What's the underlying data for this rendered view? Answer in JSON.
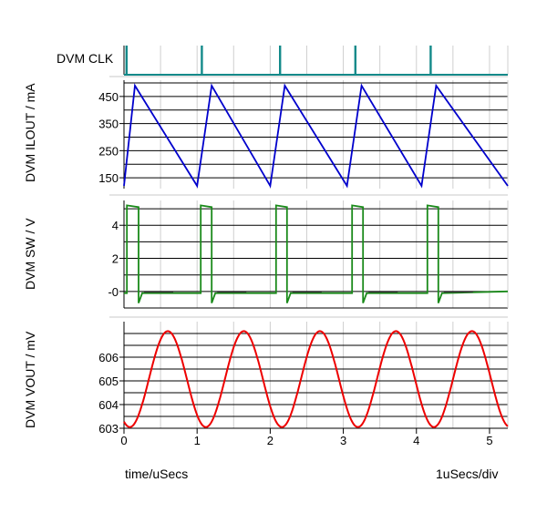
{
  "chart_data": {
    "type": "line",
    "x_axis": {
      "label": "time/uSecs",
      "div_label": "1uSecs/div",
      "range": [
        0,
        5.25
      ],
      "ticks": [
        0,
        1,
        2,
        3,
        4,
        5
      ]
    },
    "panels": [
      {
        "id": "clk",
        "name": "DVM CLK",
        "color": "#138a8a",
        "ylim": [
          0,
          1
        ],
        "ticks": [],
        "pulses": [
          0.02,
          1.05,
          2.12,
          3.15,
          4.18
        ],
        "pulse_width": 0.03
      },
      {
        "id": "ilout",
        "ylabel": "DVM ILOUT / mA",
        "color": "#0000cc",
        "ylim": [
          110,
          510
        ],
        "ticks": [
          150,
          250,
          350,
          450
        ],
        "min_lines": [
          150,
          200,
          250,
          300,
          350,
          400,
          450,
          500
        ],
        "points": [
          [
            0,
            120
          ],
          [
            0.15,
            490
          ],
          [
            1.0,
            120
          ],
          [
            1.2,
            490
          ],
          [
            2.0,
            120
          ],
          [
            2.2,
            490
          ],
          [
            3.05,
            120
          ],
          [
            3.25,
            490
          ],
          [
            4.07,
            120
          ],
          [
            4.27,
            490
          ],
          [
            5.25,
            120
          ]
        ]
      },
      {
        "id": "sw",
        "ylabel": "DVM SW / V",
        "color": "#1a8a1a",
        "ylim": [
          -1,
          5.5
        ],
        "ticks": [
          4,
          2,
          0
        ],
        "min_lines": [
          -1,
          0,
          1,
          2,
          3,
          4,
          5
        ],
        "pulses": [
          {
            "x0": 0.04,
            "x1": 0.2
          },
          {
            "x0": 1.05,
            "x1": 1.2
          },
          {
            "x0": 2.08,
            "x1": 2.23
          },
          {
            "x0": 3.12,
            "x1": 3.27
          },
          {
            "x0": 4.15,
            "x1": 4.3
          }
        ],
        "high": 5.2,
        "low": -0.1,
        "spike": -0.7
      },
      {
        "id": "vout",
        "ylabel": "DVM VOUT / mV",
        "color": "#ee0000",
        "ylim": [
          603,
          607.5
        ],
        "ticks": [
          603,
          604,
          605,
          606
        ],
        "min_lines": [
          603,
          603.5,
          604,
          604.5,
          605,
          605.5,
          606,
          606.5,
          607
        ],
        "period": 1.04,
        "min_value": 603.05,
        "max_value": 607.1,
        "phase": 0.08
      }
    ]
  }
}
